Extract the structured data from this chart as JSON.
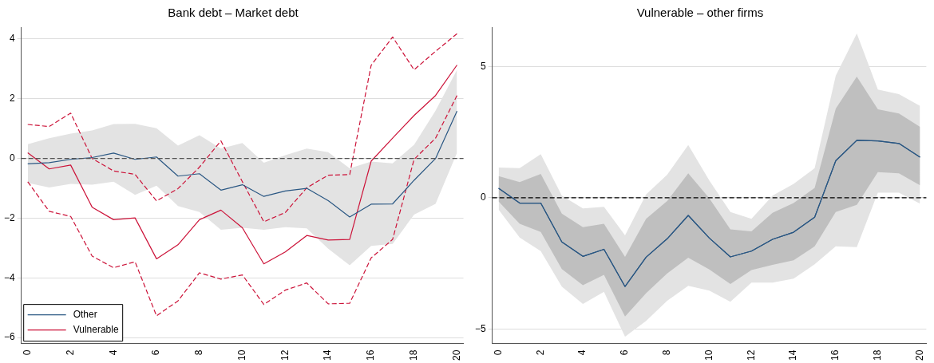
{
  "chart_data": [
    {
      "type": "line",
      "title": "Bank debt – Market debt",
      "x": [
        0,
        1,
        2,
        3,
        4,
        5,
        6,
        7,
        8,
        9,
        10,
        11,
        12,
        13,
        14,
        15,
        16,
        17,
        18,
        19,
        20
      ],
      "xlim": [
        -0.3,
        20.3
      ],
      "xticks": [
        0,
        2,
        4,
        6,
        8,
        10,
        12,
        14,
        16,
        18,
        20
      ],
      "ylim": [
        -6.2,
        4.4
      ],
      "yticks": [
        -6,
        -4,
        -2,
        0,
        2,
        4
      ],
      "grid": "y",
      "legend": "bottom left",
      "series": [
        {
          "name": "Other",
          "color": "#2a5783",
          "values": [
            -0.18,
            -0.14,
            -0.03,
            0.03,
            0.18,
            -0.03,
            0.05,
            -0.59,
            -0.51,
            -1.06,
            -0.88,
            -1.27,
            -1.09,
            -1.0,
            -1.41,
            -1.96,
            -1.53,
            -1.52,
            -0.73,
            0,
            1.59
          ],
          "lower": [
            -0.82,
            -0.97,
            -0.85,
            -0.88,
            -0.78,
            -1.22,
            -0.91,
            -1.59,
            -1.79,
            -2.39,
            -2.32,
            -2.39,
            -2.3,
            -2.34,
            -3.02,
            -3.58,
            -2.93,
            -2.86,
            -1.88,
            -1.52,
            0.19
          ],
          "upper": [
            0.48,
            0.68,
            0.83,
            0.94,
            1.15,
            1.16,
            1.01,
            0.43,
            0.78,
            0.33,
            0.52,
            -0.14,
            0.11,
            0.33,
            0.21,
            -0.33,
            -0.1,
            -0.16,
            0.46,
            1.6,
            2.97
          ]
        },
        {
          "name": "Vulnerable",
          "color": "#cc1339",
          "values": [
            0.19,
            -0.35,
            -0.22,
            -1.63,
            -2.05,
            -1.99,
            -3.36,
            -2.89,
            -2.05,
            -1.73,
            -2.32,
            -3.53,
            -3.13,
            -2.58,
            -2.73,
            -2.71,
            -0.09,
            0.68,
            1.44,
            2.11,
            3.13
          ]
        },
        {
          "color": "#cc1339",
          "line_style": "dashed",
          "values": [
            1.14,
            1.07,
            1.52,
            0,
            -0.42,
            -0.53,
            -1.42,
            -1.01,
            -0.29,
            0.59,
            -0.78,
            -2.12,
            -1.81,
            -0.98,
            -0.56,
            -0.54,
            3.12,
            4.07,
            2.97,
            3.59,
            4.18
          ]
        },
        {
          "color": "#cc1339",
          "line_style": "dashed",
          "values": [
            -0.78,
            -1.77,
            -1.94,
            -3.27,
            -3.66,
            -3.46,
            -5.27,
            -4.77,
            -3.83,
            -4.04,
            -3.9,
            -4.89,
            -4.41,
            -4.17,
            -4.87,
            -4.85,
            -3.33,
            -2.71,
            -0.03,
            0.68,
            2.11
          ]
        }
      ],
      "ref_lines": [
        {
          "axis": "y",
          "value": 0,
          "color": "#555555",
          "line_style": "dashed"
        }
      ]
    },
    {
      "type": "line",
      "title": "Vulnerable – other firms",
      "x": [
        0,
        1,
        2,
        3,
        4,
        5,
        6,
        7,
        8,
        9,
        10,
        11,
        12,
        13,
        14,
        15,
        16,
        17,
        18,
        19,
        20
      ],
      "xlim": [
        -0.3,
        20.3
      ],
      "xticks": [
        0,
        2,
        4,
        6,
        8,
        10,
        12,
        14,
        16,
        18,
        20
      ],
      "ylim": [
        -5.55,
        6.5
      ],
      "yticks": [
        -5,
        0,
        5
      ],
      "grid": "y",
      "series": [
        {
          "color": "#2a5783",
          "values": [
            0.36,
            -0.2,
            -0.2,
            -1.68,
            -2.23,
            -1.96,
            -3.38,
            -2.26,
            -1.56,
            -0.67,
            -1.53,
            -2.25,
            -2.03,
            -1.58,
            -1.31,
            -0.74,
            1.41,
            2.19,
            2.17,
            2.07,
            1.55
          ],
          "lower": [
            -0.45,
            -1.51,
            -2.03,
            -3.38,
            -4.04,
            -3.58,
            -5.29,
            -4.69,
            -3.92,
            -3.35,
            -3.53,
            -3.96,
            -3.23,
            -3.23,
            -3.08,
            -2.53,
            -1.85,
            -1.88,
            0.2,
            0.2,
            -0.22
          ],
          "upper": [
            1.15,
            1.13,
            1.66,
            0.08,
            -0.4,
            -0.34,
            -1.43,
            0.13,
            0.88,
            2.01,
            0.66,
            -0.54,
            -0.8,
            0.08,
            0.53,
            1.13,
            4.65,
            6.26,
            4.12,
            3.95,
            3.5
          ]
        },
        {
          "color": "#2a5783",
          "values": [
            0.36,
            -0.2,
            -0.2,
            -1.68,
            -2.23,
            -1.96,
            -3.38,
            -2.26,
            -1.56,
            -0.67,
            -1.53,
            -2.25,
            -2.03,
            -1.58,
            -1.31,
            -0.74,
            1.41,
            2.19,
            2.17,
            2.07,
            1.55
          ],
          "lower": [
            -0.14,
            -0.99,
            -1.3,
            -2.71,
            -3.33,
            -2.93,
            -4.52,
            -3.63,
            -2.88,
            -2.28,
            -2.73,
            -3.28,
            -2.75,
            -2.55,
            -2.38,
            -1.85,
            -0.54,
            -0.27,
            0.98,
            0.93,
            0.48
          ],
          "upper": [
            0.83,
            0.6,
            0.91,
            -0.6,
            -1.12,
            -0.99,
            -2.25,
            -0.8,
            -0.12,
            0.93,
            -0.02,
            -1.2,
            -1.28,
            -0.57,
            -0.2,
            0.38,
            3.39,
            4.62,
            3.37,
            3.21,
            2.7
          ]
        }
      ],
      "ref_lines": [
        {
          "axis": "y",
          "value": 0,
          "color": "#000000",
          "line_style": "dashed"
        }
      ]
    }
  ]
}
